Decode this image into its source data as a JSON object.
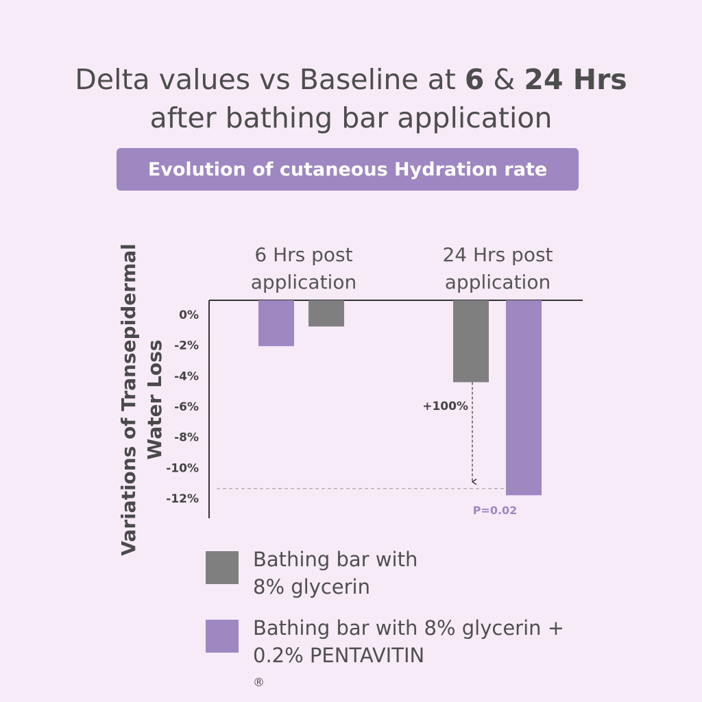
{
  "title": {
    "part1": "Delta values vs Baseline at ",
    "bold1": "6",
    "part2": " & ",
    "bold2": "24 Hrs",
    "line2": "after bathing bar application"
  },
  "subtitle": "Evolution of cutaneous Hydration rate",
  "colors": {
    "glycerin": "#7f7f7f",
    "pentavitin": "#9f87c2",
    "background": "#f6ebf7",
    "axis": "#333333"
  },
  "chart_data": {
    "type": "bar",
    "ylabel": [
      "Variations of Transepidermal",
      "Water Loss"
    ],
    "ylim": [
      -12,
      0
    ],
    "yticks": [
      0,
      -2,
      -4,
      -6,
      -8,
      -10,
      -12
    ],
    "ytick_labels": [
      "0%",
      "-2%",
      "-4%",
      "-6%",
      "-8%",
      "-10%",
      "-12%"
    ],
    "groups": [
      {
        "label": [
          "6 Hrs post",
          "application"
        ],
        "bars": [
          {
            "series": "Bathing bar with 8% glycerin + 0.2% PENTAVITIN®",
            "value": -2.8
          },
          {
            "series": "Bathing bar with 8% glycerin",
            "value": -1.6
          }
        ]
      },
      {
        "label": [
          "24 Hrs post",
          "application"
        ],
        "bars": [
          {
            "series": "Bathing bar with 8% glycerin",
            "value": -5.0
          },
          {
            "series": "Bathing bar with 8% glycerin + 0.2% PENTAVITIN®",
            "value": -11.9
          }
        ]
      }
    ],
    "annotations": [
      {
        "text": "+100%",
        "kind": "arrow",
        "from": -5.0,
        "to": -12
      },
      {
        "text": "P=0.02",
        "kind": "reference-line",
        "value": -12
      }
    ],
    "grid": false
  },
  "legend": {
    "items": [
      {
        "name": "glycerin",
        "lines": [
          "Bathing bar with",
          "8% glycerin"
        ],
        "sup": ""
      },
      {
        "name": "pentavitin",
        "lines": [
          "Bathing bar with 8% glycerin +",
          "0.2% PENTAVITIN"
        ],
        "sup": "®"
      }
    ]
  }
}
